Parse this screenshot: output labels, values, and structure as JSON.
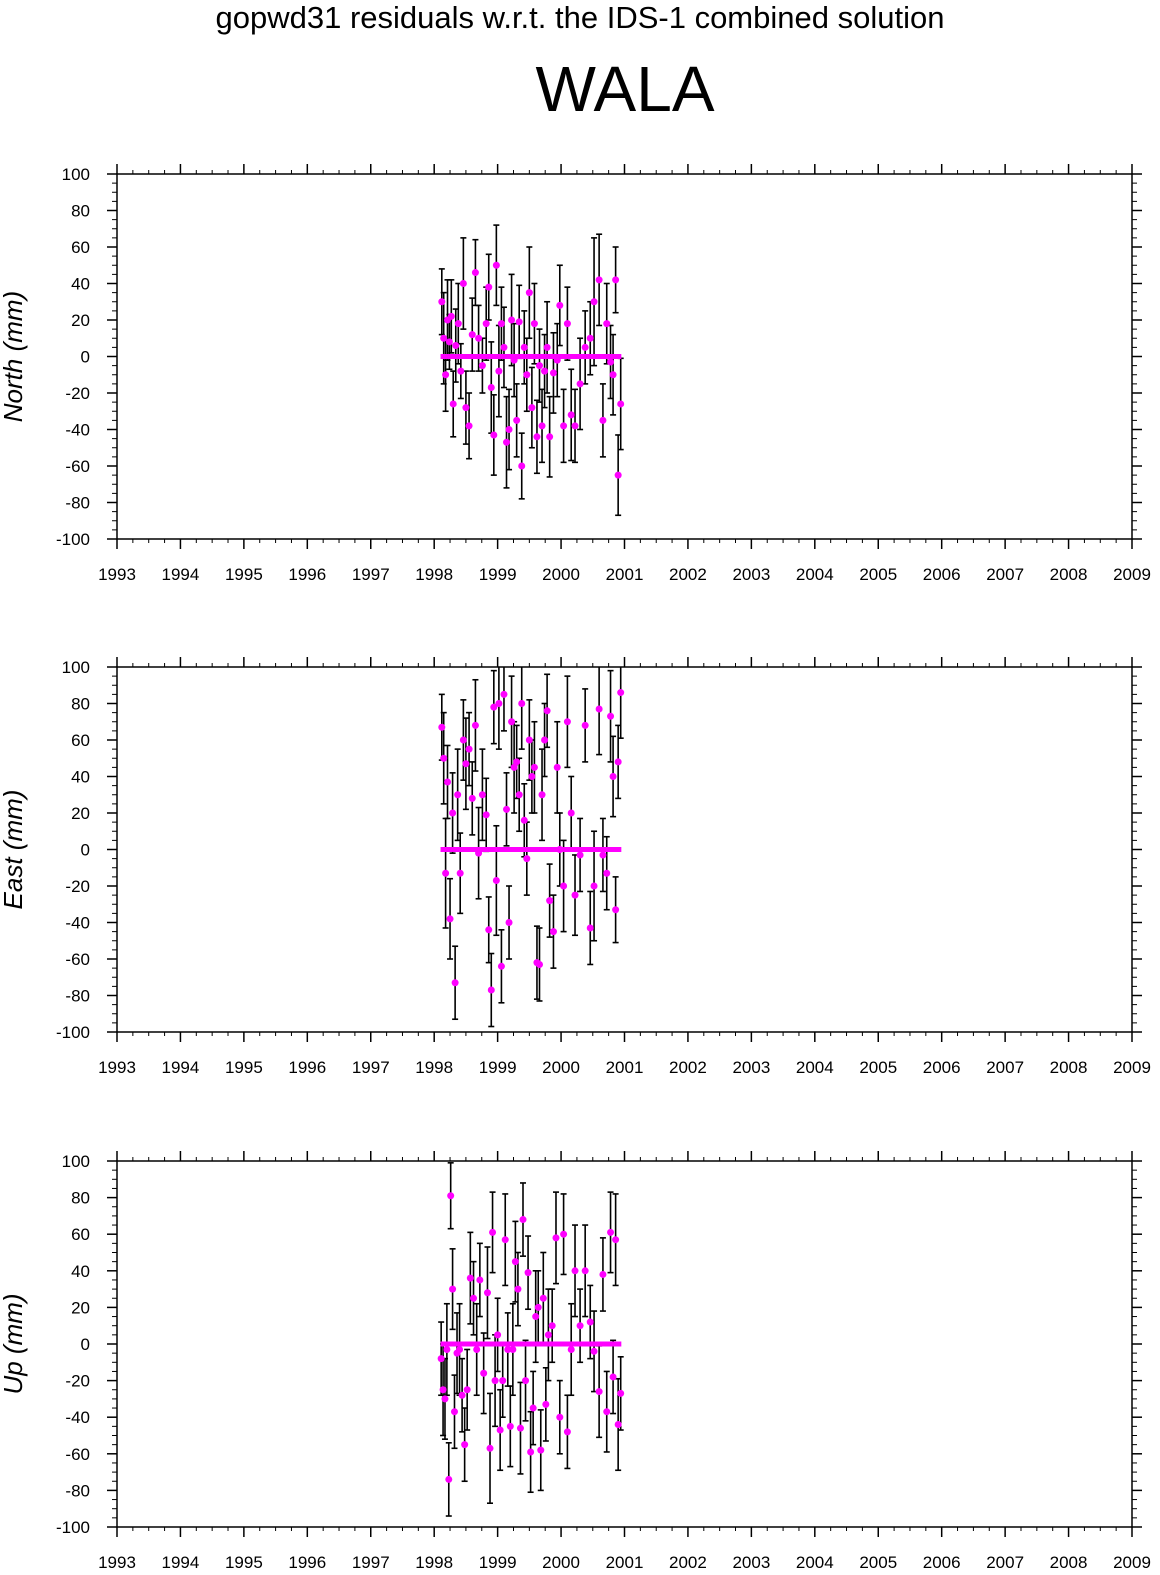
{
  "title": "gopwd31 residuals w.r.t. the IDS-1 combined solution",
  "station": "WALA",
  "colors": {
    "marker": "#ff00ff",
    "errorbar": "#000000",
    "axis": "#000000"
  },
  "chart_data": [
    {
      "type": "scatter",
      "ylabel": "North (mm)",
      "xlim": [
        1993,
        2009
      ],
      "ylim": [
        -100,
        100
      ],
      "xticks": [
        "1993",
        "1994",
        "1995",
        "1996",
        "1997",
        "1998",
        "1999",
        "2000",
        "2001",
        "2002",
        "2003",
        "2004",
        "2005",
        "2006",
        "2007",
        "2008",
        "2009"
      ],
      "yticks": [
        "100",
        "80",
        "60",
        "40",
        "20",
        "0",
        "-20",
        "-40",
        "-60",
        "-80",
        "-100"
      ],
      "zero_line": {
        "x_start": 1998.1,
        "x_end": 2000.95,
        "y": 0
      },
      "series": [
        {
          "x": [
            1998.12,
            1998.15,
            1998.18,
            1998.21,
            1998.24,
            1998.27,
            1998.3,
            1998.34,
            1998.38,
            1998.42,
            1998.46,
            1998.5,
            1998.55,
            1998.6,
            1998.65,
            1998.7,
            1998.76,
            1998.82,
            1998.86,
            1998.9,
            1998.94,
            1998.98,
            1999.02,
            1999.06,
            1999.1,
            1999.14,
            1999.18,
            1999.22,
            1999.26,
            1999.3,
            1999.34,
            1999.38,
            1999.42,
            1999.46,
            1999.5,
            1999.54,
            1999.58,
            1999.62,
            1999.66,
            1999.7,
            1999.74,
            1999.78,
            1999.82,
            1999.88,
            1999.94,
            1999.98,
            2000.04,
            2000.1,
            2000.16,
            2000.22,
            2000.3,
            2000.38,
            2000.46,
            2000.52,
            2000.6,
            2000.66,
            2000.72,
            2000.78,
            2000.82,
            2000.86,
            2000.9,
            2000.94
          ],
          "y": [
            30,
            10,
            -10,
            20,
            8,
            22,
            -26,
            6,
            18,
            -8,
            40,
            -28,
            -38,
            12,
            46,
            10,
            -5,
            18,
            38,
            -17,
            -43,
            50,
            -8,
            18,
            5,
            -47,
            -40,
            20,
            -2,
            -35,
            19,
            -60,
            5,
            -10,
            35,
            -28,
            18,
            -44,
            -5,
            -38,
            -8,
            5,
            -44,
            -9,
            -2,
            28,
            -38,
            18,
            -32,
            -38,
            -15,
            5,
            10,
            30,
            42,
            -35,
            18,
            -3,
            -10,
            42,
            -65,
            -26
          ],
          "err": [
            18,
            25,
            20,
            22,
            15,
            20,
            18,
            20,
            22,
            15,
            25,
            20,
            18,
            20,
            18,
            18,
            15,
            20,
            18,
            25,
            22,
            22,
            25,
            20,
            22,
            25,
            22,
            25,
            20,
            20,
            20,
            18,
            20,
            20,
            25,
            22,
            22,
            20,
            20,
            20,
            20,
            25,
            22,
            22,
            20,
            22,
            20,
            20,
            25,
            20,
            25,
            20,
            20,
            35,
            25,
            20,
            22,
            20,
            22,
            18,
            22,
            25
          ]
        }
      ]
    },
    {
      "type": "scatter",
      "ylabel": "East (mm)",
      "xlim": [
        1993,
        2009
      ],
      "ylim": [
        -100,
        100
      ],
      "xticks": [
        "1993",
        "1994",
        "1995",
        "1996",
        "1997",
        "1998",
        "1999",
        "2000",
        "2001",
        "2002",
        "2003",
        "2004",
        "2005",
        "2006",
        "2007",
        "2008",
        "2009"
      ],
      "yticks": [
        "100",
        "80",
        "60",
        "40",
        "20",
        "0",
        "-20",
        "-40",
        "-60",
        "-80",
        "-100"
      ],
      "zero_line": {
        "x_start": 1998.1,
        "x_end": 2000.95,
        "y": 0
      },
      "series": [
        {
          "x": [
            1998.12,
            1998.15,
            1998.18,
            1998.21,
            1998.25,
            1998.29,
            1998.33,
            1998.37,
            1998.41,
            1998.46,
            1998.5,
            1998.55,
            1998.6,
            1998.65,
            1998.7,
            1998.76,
            1998.82,
            1998.86,
            1998.9,
            1998.94,
            1998.98,
            1999.02,
            1999.06,
            1999.1,
            1999.14,
            1999.18,
            1999.22,
            1999.26,
            1999.3,
            1999.34,
            1999.38,
            1999.42,
            1999.46,
            1999.5,
            1999.54,
            1999.58,
            1999.62,
            1999.66,
            1999.7,
            1999.74,
            1999.78,
            1999.82,
            1999.88,
            1999.94,
            1999.98,
            2000.04,
            2000.1,
            2000.16,
            2000.22,
            2000.3,
            2000.38,
            2000.46,
            2000.52,
            2000.6,
            2000.66,
            2000.72,
            2000.78,
            2000.82,
            2000.86,
            2000.9,
            2000.94
          ],
          "y": [
            67,
            50,
            -13,
            37,
            -38,
            20,
            -73,
            30,
            -13,
            60,
            47,
            55,
            28,
            68,
            -2,
            30,
            19,
            -44,
            -77,
            78,
            -17,
            80,
            -64,
            85,
            22,
            -40,
            70,
            45,
            48,
            30,
            80,
            16,
            -5,
            60,
            40,
            45,
            -62,
            -63,
            30,
            60,
            76,
            -28,
            -45,
            45,
            0,
            -20,
            70,
            20,
            -25,
            -3,
            68,
            -43,
            -20,
            77,
            -3,
            -13,
            73,
            40,
            -33,
            48,
            86
          ],
          "err": [
            18,
            25,
            30,
            20,
            22,
            22,
            20,
            25,
            22,
            22,
            25,
            20,
            20,
            25,
            25,
            25,
            20,
            18,
            20,
            20,
            30,
            25,
            20,
            20,
            20,
            20,
            25,
            25,
            20,
            20,
            25,
            20,
            20,
            22,
            20,
            25,
            20,
            20,
            25,
            20,
            20,
            20,
            20,
            25,
            20,
            25,
            25,
            20,
            22,
            20,
            20,
            20,
            30,
            25,
            20,
            20,
            25,
            22,
            18,
            20,
            25
          ]
        }
      ]
    },
    {
      "type": "scatter",
      "ylabel": "Up (mm)",
      "xlim": [
        1993,
        2009
      ],
      "ylim": [
        -100,
        100
      ],
      "xticks": [
        "1993",
        "1994",
        "1995",
        "1996",
        "1997",
        "1998",
        "1999",
        "2000",
        "2001",
        "2002",
        "2003",
        "2004",
        "2005",
        "2006",
        "2007",
        "2008",
        "2009"
      ],
      "yticks": [
        "100",
        "80",
        "60",
        "40",
        "20",
        "0",
        "-20",
        "-40",
        "-60",
        "-80",
        "-100"
      ],
      "zero_line": {
        "x_start": 1998.1,
        "x_end": 2000.95,
        "y": 0
      },
      "series": [
        {
          "x": [
            1998.11,
            1998.14,
            1998.17,
            1998.2,
            1998.23,
            1998.26,
            1998.29,
            1998.32,
            1998.36,
            1998.4,
            1998.44,
            1998.48,
            1998.52,
            1998.57,
            1998.62,
            1998.67,
            1998.72,
            1998.78,
            1998.84,
            1998.88,
            1998.92,
            1998.96,
            1999.0,
            1999.04,
            1999.08,
            1999.12,
            1999.16,
            1999.2,
            1999.24,
            1999.28,
            1999.32,
            1999.36,
            1999.4,
            1999.44,
            1999.48,
            1999.52,
            1999.56,
            1999.6,
            1999.64,
            1999.68,
            1999.72,
            1999.76,
            1999.8,
            1999.86,
            1999.92,
            1999.98,
            2000.04,
            2000.1,
            2000.16,
            2000.22,
            2000.3,
            2000.38,
            2000.46,
            2000.52,
            2000.6,
            2000.66,
            2000.72,
            2000.78,
            2000.82,
            2000.86,
            2000.9,
            2000.94
          ],
          "y": [
            -8,
            -25,
            -30,
            -3,
            -74,
            81,
            30,
            -37,
            -5,
            -3,
            -28,
            -55,
            -25,
            36,
            25,
            -3,
            35,
            -16,
            28,
            -57,
            61,
            -20,
            5,
            -47,
            -20,
            57,
            -3,
            -45,
            -3,
            45,
            30,
            -46,
            68,
            -20,
            39,
            -59,
            -35,
            15,
            20,
            -58,
            25,
            -33,
            5,
            10,
            58,
            -40,
            60,
            -48,
            -3,
            40,
            10,
            40,
            12,
            -4,
            -26,
            38,
            -37,
            61,
            -18,
            57,
            -44,
            -27
          ],
          "err": [
            20,
            25,
            22,
            25,
            20,
            18,
            22,
            20,
            22,
            25,
            20,
            20,
            22,
            25,
            20,
            25,
            20,
            22,
            25,
            30,
            22,
            25,
            20,
            22,
            20,
            25,
            20,
            22,
            25,
            22,
            20,
            25,
            20,
            22,
            20,
            22,
            20,
            25,
            20,
            22,
            25,
            20,
            25,
            20,
            25,
            20,
            22,
            20,
            25,
            25,
            20,
            25,
            20,
            22,
            25,
            20,
            22,
            22,
            20,
            25,
            25,
            20
          ]
        }
      ]
    }
  ]
}
